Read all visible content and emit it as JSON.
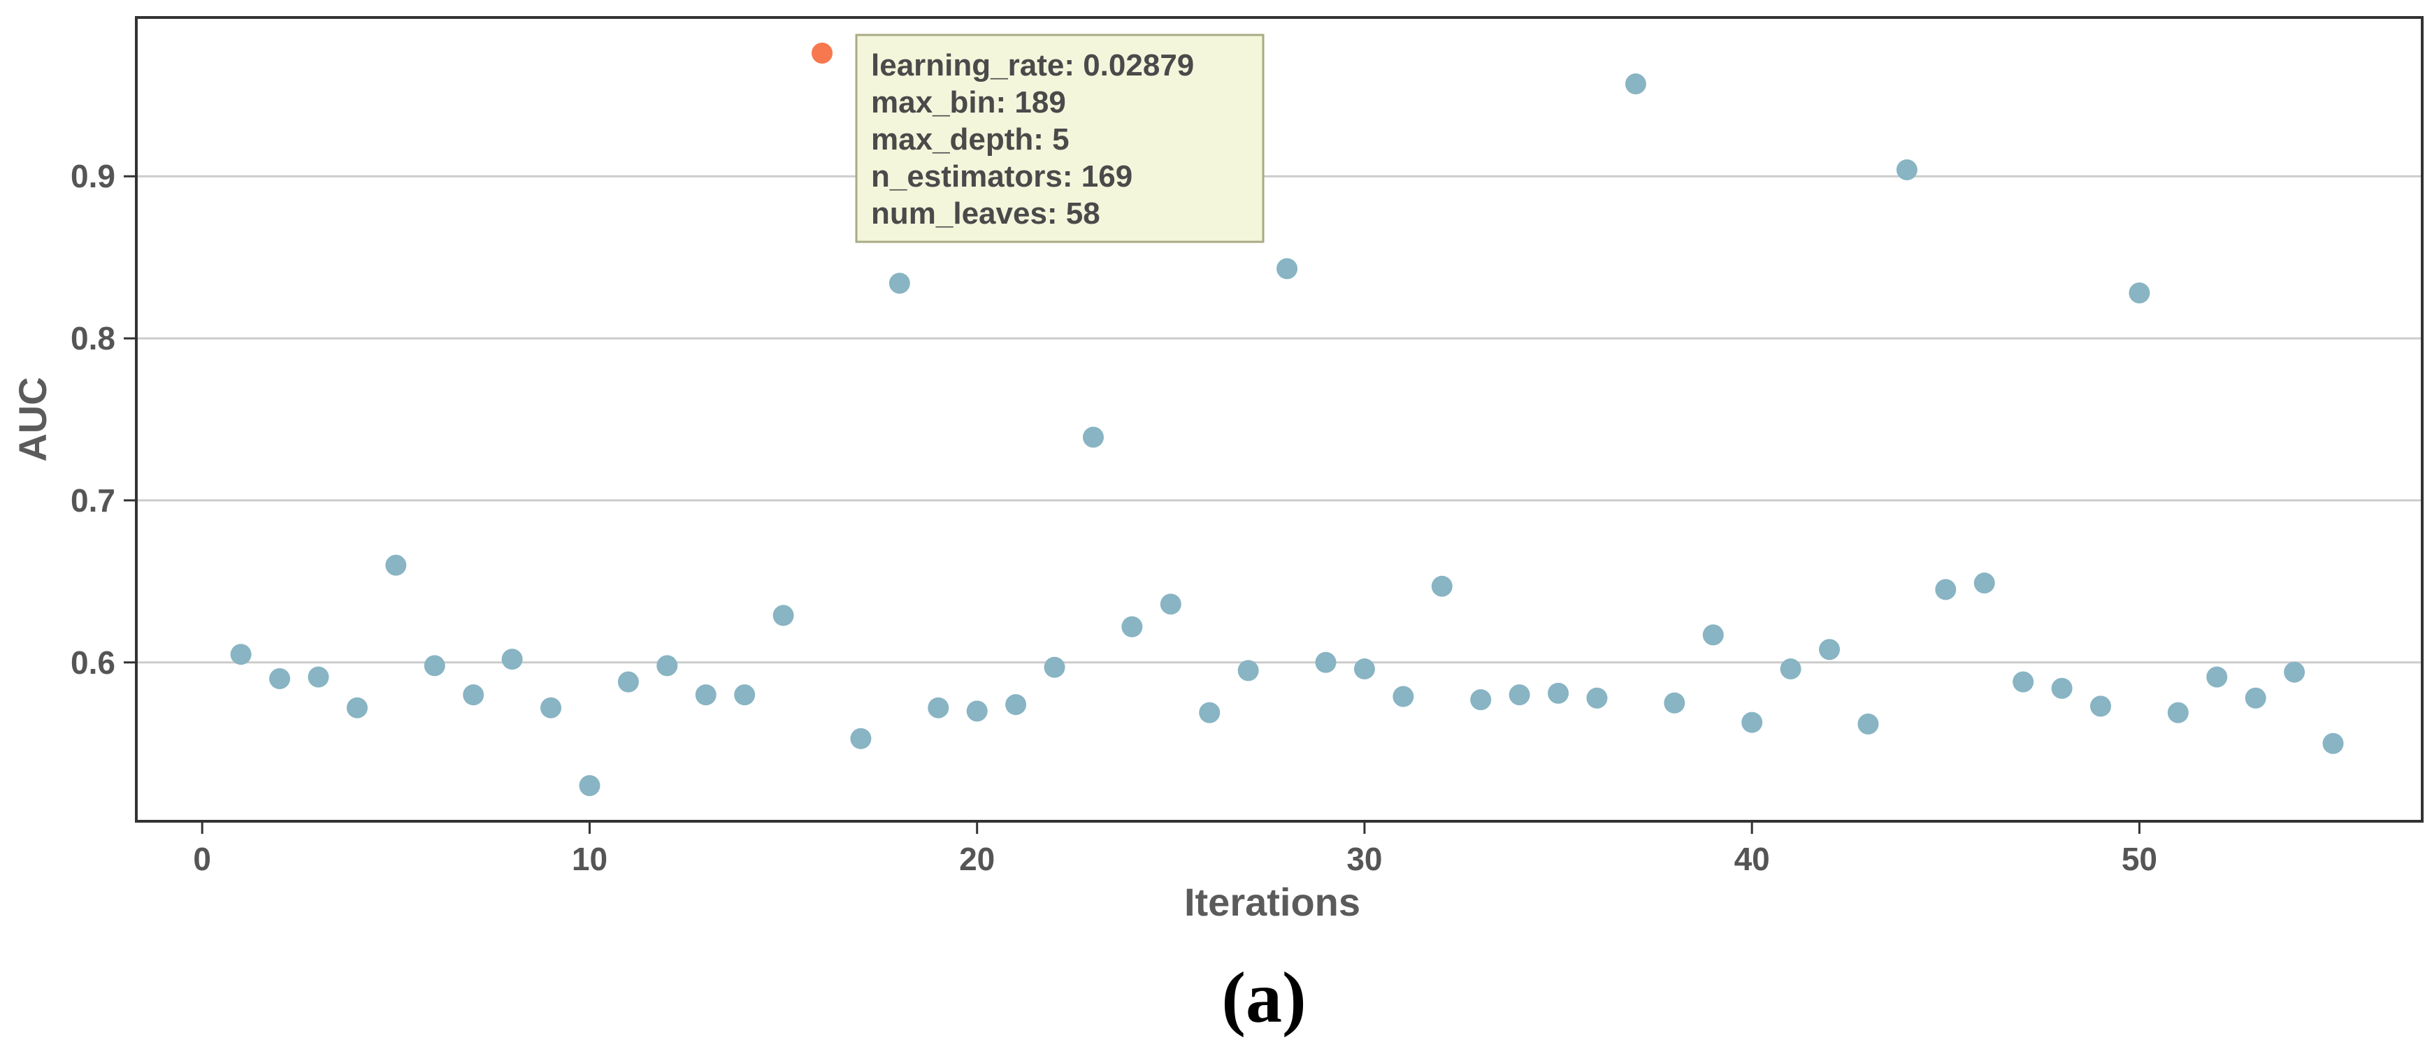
{
  "panel_label": "(a)",
  "colors": {
    "point": "#88b4c3",
    "highlight": "#f7774f",
    "grid": "#cccccc",
    "frame": "#333333",
    "tooltip_fill": "#f4f6dc",
    "tooltip_border": "#a9ab83"
  },
  "chart_data": {
    "type": "scatter",
    "title": "",
    "xlabel": "Iterations",
    "ylabel": "AUC",
    "xlim": [
      -1.7,
      57.3
    ],
    "ylim": [
      0.502,
      0.998
    ],
    "x_ticks": [
      0,
      10,
      20,
      30,
      40,
      50
    ],
    "y_ticks": [
      0.6,
      0.7,
      0.8,
      0.9
    ],
    "grid": "horizontal",
    "legend": "none",
    "x": [
      1,
      2,
      3,
      4,
      5,
      6,
      7,
      8,
      9,
      10,
      11,
      12,
      13,
      14,
      15,
      16,
      17,
      18,
      19,
      20,
      21,
      22,
      23,
      24,
      25,
      26,
      27,
      28,
      29,
      30,
      31,
      32,
      33,
      34,
      35,
      36,
      37,
      38,
      39,
      40,
      41,
      42,
      43,
      44,
      45,
      46,
      47,
      48,
      49,
      50,
      51,
      52,
      53,
      54,
      55
    ],
    "y": [
      0.605,
      0.59,
      0.591,
      0.572,
      0.66,
      0.598,
      0.58,
      0.602,
      0.572,
      0.524,
      0.588,
      0.598,
      0.58,
      0.58,
      0.629,
      0.976,
      0.553,
      0.834,
      0.572,
      0.57,
      0.574,
      0.597,
      0.739,
      0.622,
      0.636,
      0.569,
      0.595,
      0.843,
      0.6,
      0.596,
      0.579,
      0.647,
      0.577,
      0.58,
      0.581,
      0.578,
      0.957,
      0.575,
      0.617,
      0.563,
      0.596,
      0.608,
      0.562,
      0.904,
      0.645,
      0.649,
      0.588,
      0.584,
      0.573,
      0.828,
      0.569,
      0.591,
      0.578,
      0.594,
      0.55
    ],
    "highlight_x": 16,
    "tooltip": {
      "lines": [
        "learning_rate: 0.02879",
        "max_bin: 189",
        "max_depth: 5",
        "n_estimators: 169",
        "num_leaves: 58"
      ]
    }
  }
}
